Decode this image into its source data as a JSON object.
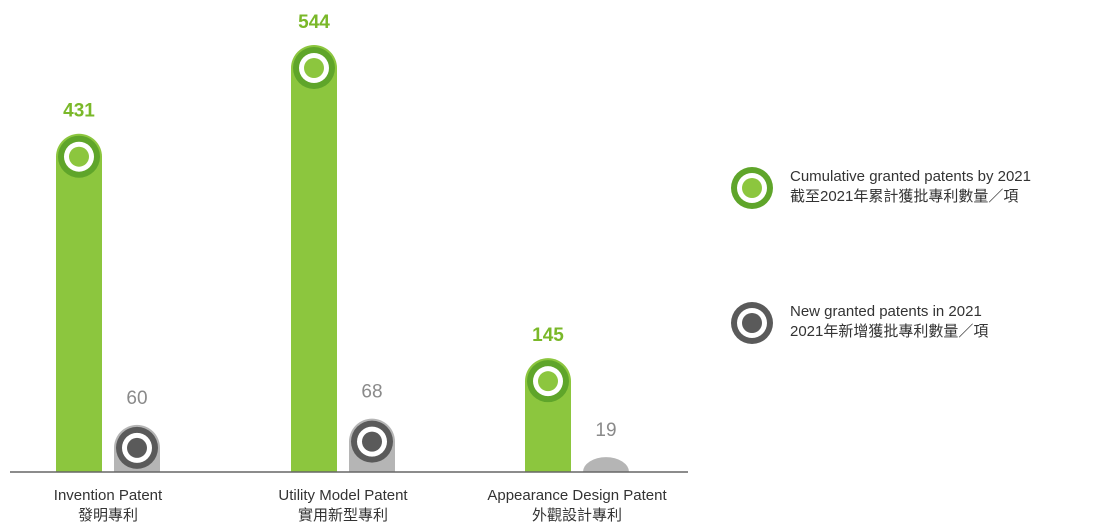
{
  "chart_data": {
    "type": "bar",
    "categories": [
      [
        "Invention Patent",
        "發明專利"
      ],
      [
        "Utility Model Patent",
        "實用新型專利"
      ],
      [
        "Appearance Design Patent",
        "外觀設計專利"
      ]
    ],
    "series": [
      {
        "name": [
          "Cumulative granted patents by 2021",
          "截至2021年累計獲批專利數量／項"
        ],
        "color": "#8cc63e",
        "values": [
          431,
          544,
          145
        ]
      },
      {
        "name": [
          "New granted patents in 2021",
          "2021年新增獲批專利數量／項"
        ],
        "color": "#b5b5b5",
        "values": [
          60,
          68,
          19
        ]
      }
    ]
  }
}
